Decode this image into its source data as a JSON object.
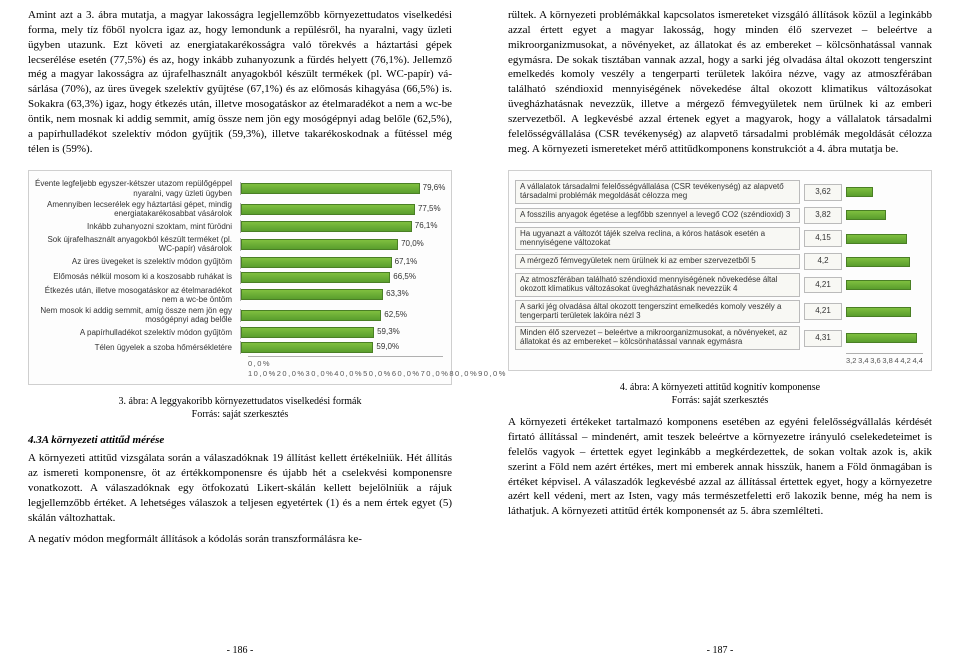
{
  "left": {
    "para1": "Amint azt a 3. ábra mutatja, a magyar lakosságra legjellemzőbb környezet­tudatos viselkedési forma, mely tíz főből nyolcra igaz az, hogy lemondunk a repülésről, ha nyaralni, vagy üzleti ügyben utazunk. Ezt követi az energiata­karékosságra való törekvés a háztartási gépek lecserélése esetén (77,5%) és az, hogy inkább zuhanyozunk a fürdés helyett (76,1%). Jellemző még a magyar lakosságra az újrafelhasznált anyagokból készült termékek (pl. WC-papír) vá­sárlása (70%), az üres üvegek szelektív gyűjtése (67,1%) és az előmosás kihagyá­sa (66,5%) is. Sokakra (63,3%) igaz, hogy étkezés után, illetve mosogatáskor az ételmaradékot a nem a wc-be öntik, nem mosnak ki addig semmit, amíg össze nem jön egy mosógépnyi adag belőle (62,5%), a papírhulladékot szelektív módon gyűjtik (59,3%), illetve takarékoskodnak a fűtéssel még télen is (59%).",
    "chart1": {
      "type": "bar",
      "bar_color": "#5a9e2d",
      "border_color": "#4a7f25",
      "axis_color": "#b0b0b0",
      "xmin": 0,
      "xmax": 90,
      "axis_label": "0,0% 10,0%20,0%30,0%40,0%50,0%60,0%70,0%80,0%90,0%",
      "rows": [
        {
          "label": "Évente legfeljebb egyszer-kétszer utazom repülőgéppel nyaralni, vagy üzleti ügyben",
          "value": 79.6,
          "disp": "79,6%"
        },
        {
          "label": "Amennyiben lecserélek egy háztartási gépet, mindig energiatakarékosabbat vásárolok",
          "value": 77.5,
          "disp": "77,5%"
        },
        {
          "label": "Inkább zuhanyozni szoktam, mint fürödni",
          "value": 76.1,
          "disp": "76,1%"
        },
        {
          "label": "Sok újrafelhasznált anyagokból készült terméket (pl. WC-papír) vásárolok",
          "value": 70.0,
          "disp": "70,0%"
        },
        {
          "label": "Az üres üvegeket is szelektív módon gyűjtöm",
          "value": 67.1,
          "disp": "67,1%"
        },
        {
          "label": "Előmosás nélkül mosom ki a koszosabb ruhákat is",
          "value": 66.5,
          "disp": "66,5%"
        },
        {
          "label": "Étkezés után, illetve mosogatáskor az ételmaradékot nem a wc-be öntöm",
          "value": 63.3,
          "disp": "63,3%"
        },
        {
          "label": "Nem mosok ki addig semmit, amíg össze nem jön egy mosógépnyi adag belőle",
          "value": 62.5,
          "disp": "62,5%"
        },
        {
          "label": "A papírhulladékot szelektív módon gyűjtöm",
          "value": 59.3,
          "disp": "59,3%"
        },
        {
          "label": "Télen ügyelek a szoba hőmérsékletére",
          "value": 59.0,
          "disp": "59,0%"
        }
      ]
    },
    "caption1a": "3. ábra: A leggyakoribb környezettudatos viselkedési formák",
    "caption1b": "Forrás: saját szerkesztés",
    "heading": "4.3A környezeti attitűd mérése",
    "para2": "A környezeti attitűd vizsgálata során a válaszadóknak 19 állítást kellett értékel­niük.  Hét állítás az ismereti komponensre, öt az értékkomponensre és újabb hét a cselekvési komponensre vonatkozott. A válaszadóknak egy ötfokozatú Likert-skálán kellett bejelölniük a rájuk legjellemzőbb értéket. A lehetséges vá­laszok a teljesen egyetértek (1) és a nem értek egyet (5) skálán változhattak.",
    "para3": "A negatív módon megformált állítások a kódolás során transzformálásra ke-",
    "pagenum": "- 186 -"
  },
  "right": {
    "para1": "rültek. A környezeti problémákkal kapcsolatos ismereteket vizsgáló állítások közül a leginkább azzal értett egyet a magyar lakosság, hogy minden élő szer­vezet – beleértve a mikroorganizmusokat, a növényeket, az állatokat és az em­bereket – kölcsönhatással vannak egymásra. De sokak tisztában vannak azzal, hogy a sarki jég olvadása által okozott tengerszint emelkedés komoly veszély a tengerparti területek lakóira nézve, vagy az atmoszférában található széndioxid mennyiségének növekedése által okozott klimatikus változásokat üvegházha­tásnak nevezzük, illetve a mérgező fémvegyületek nem ürülnek ki az emberi szervezetből. A legkevésbé azzal értenek egyet a magyarok, hogy a vállalatok társadalmi felelősségvállalása (CSR tevékenység) az alapvető társadalmi prob­lémák megoldását célozza meg. A környezeti ismereteket mérő attitűdkompo­nens konstrukciót a 4. ábra mutatja be.",
    "chart2": {
      "type": "bar",
      "bar_color": "#5a9e2d",
      "border_color": "#4a7f25",
      "axis_color": "#b0b0b0",
      "xmin": 3.2,
      "xmax": 4.4,
      "ticks": [
        "3,2",
        "3,4",
        "3,6",
        "3,8",
        "4",
        "4,2",
        "4,4"
      ],
      "rows": [
        {
          "label": "A vállalatok társadalmi felelősségvállalása (CSR tevékenység) az alapvető társadalmi problémák megoldását célozza meg",
          "value": 3.62,
          "disp": "3,62"
        },
        {
          "label": "A fosszilis anyagok égetése a legfőbb szennyel a levegő CO2 (széndioxid) 3",
          "value": 3.82,
          "disp": "3,82"
        },
        {
          "label": "Ha ugyanazt a változót tájék szelva reclina, a kóros hatások esetén a mennyiségene változokat",
          "value": 4.15,
          "disp": "4,15"
        },
        {
          "label": "A mérgező fémvegyületek nem ürülnek ki az ember szervezetből 5",
          "value": 4.2,
          "disp": "4,2"
        },
        {
          "label": "Az atmoszférában található széndioxid mennyiségének növekedése által okozott klimatikus változásokat üvegházhatásnak nevezzük 4",
          "value": 4.21,
          "disp": "4,21"
        },
        {
          "label": "A sarki jég olvadása által okozott tengerszint emelkedés komoly veszély a tengerparti területek lakóira nézl 3",
          "value": 4.21,
          "disp": "4,21"
        },
        {
          "label": "Minden élő szervezet – beleértve a mikroorganizmusokat, a növényeket, az állatokat és az embereket – kölcsönhatással vannak egymásra",
          "value": 4.31,
          "disp": "4,31"
        }
      ]
    },
    "caption2a": "4. ábra: A környezeti attitűd kognitív komponense",
    "caption2b": "Forrás: saját szerkesztés",
    "para2": "A környezeti értékeket tartalmazó komponens esetében az egyéni felelősségvál­lalás kérdését firtató állítással – mindenért, amit teszek beleértve a környezetre irányuló cselekedeteimet is felelős vagyok – értettek egyet leginkább a megkér­dezettek, de sokan voltak azok is, akik szerint a Föld nem azért értékes, mert mi emberek annak hisszük, hanem a Föld önmagában is értéket képvisel. A válaszadók legkevésbé azzal az állítással értettek egyet, hogy a környezetre azért kell védeni, mert az Isten, vagy más természetfeletti erő lakozik benne, még ha nem is láthatjuk. A környezeti attitűd érték komponensét az 5. ábra szemlélteti.",
    "pagenum": "- 187 -"
  }
}
